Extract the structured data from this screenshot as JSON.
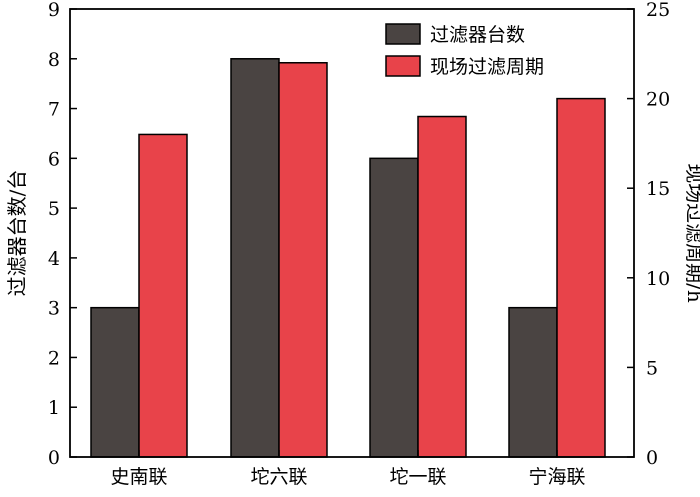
{
  "chart_data": {
    "type": "bar",
    "categories": [
      "史南联",
      "坨六联",
      "坨一联",
      "宁海联"
    ],
    "series": [
      {
        "name": "过滤器台数",
        "axis": "left",
        "color": "#4a4442",
        "values": [
          3,
          8,
          6,
          3
        ]
      },
      {
        "name": "现场过滤周期",
        "axis": "right",
        "color": "#e8434a",
        "values": [
          18,
          22,
          19,
          20
        ]
      }
    ],
    "ylabel_left": "过滤器台数/台",
    "ylabel_right": "现场过滤周期/h",
    "ylim_left": [
      0,
      9
    ],
    "yticks_left": [
      "0",
      "1",
      "2",
      "3",
      "4",
      "5",
      "6",
      "7",
      "8",
      "9"
    ],
    "ylim_right": [
      0,
      25
    ],
    "yticks_right": [
      "0",
      "5",
      "10",
      "15",
      "20",
      "25"
    ],
    "legend_position": "top-right",
    "grid": false
  }
}
